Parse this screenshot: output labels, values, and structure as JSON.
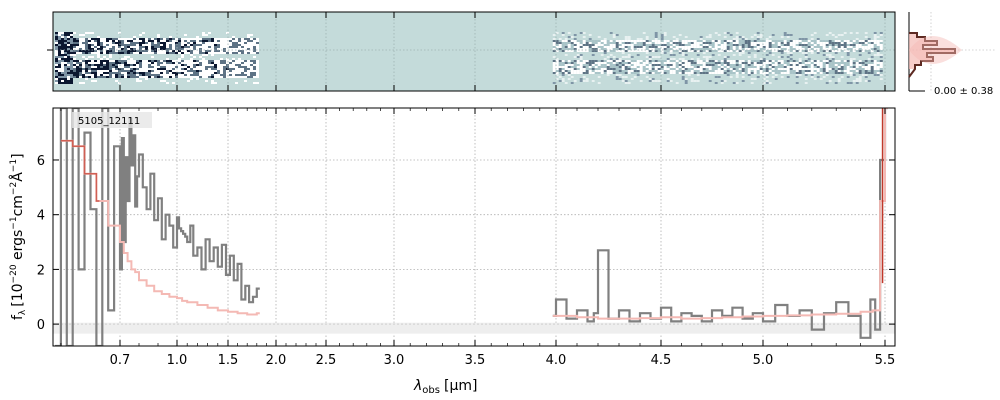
{
  "chart_data": [
    {
      "type": "heatmap",
      "panel": "2d-spectrum",
      "cmap_background": "#c4dbda",
      "dark_color": "#0b1730",
      "grid": true
    },
    {
      "type": "line",
      "panel": "1d-spectrum",
      "label": "5105_12111",
      "xlabel_latex": "λ_obs [μm]",
      "xlabel": {
        "lambda": "λ",
        "sub": "obs",
        "unit": "[μm]"
      },
      "ylabel": {
        "f": "f",
        "sub": "λ",
        "a": "[10",
        "b": "−20",
        "c": " ergs",
        "d": "−1",
        "e": "cm",
        "f2": "−2",
        "g": "Å",
        "h": "−1",
        "i": "]"
      },
      "x_ticks": [
        "0.7",
        "1.0",
        "1.5",
        "2.0",
        "2.5",
        "3.0",
        "3.5",
        "4.0",
        "4.5",
        "5.0",
        "5.5"
      ],
      "y_ticks": [
        "0",
        "2",
        "4",
        "6"
      ],
      "ylim": [
        -0.8,
        7.9
      ],
      "grid": true,
      "colors": {
        "data": "#808080",
        "model": "#f4b9b4",
        "model_red": "#c0392b",
        "zero_band": "#eeeeee"
      },
      "series": [
        {
          "segment": "prism-blue",
          "x": [
            0.59,
            0.6,
            0.61,
            0.62,
            0.63,
            0.64,
            0.65,
            0.66,
            0.67,
            0.68,
            0.69,
            0.7,
            0.71,
            0.72,
            0.73,
            0.74,
            0.75,
            0.76,
            0.77,
            0.78,
            0.79,
            0.8,
            0.82,
            0.84,
            0.86,
            0.88,
            0.9,
            0.92,
            0.94,
            0.96,
            0.98,
            1.0,
            1.02,
            1.04,
            1.06,
            1.08,
            1.1,
            1.13,
            1.16,
            1.2,
            1.24,
            1.28,
            1.32,
            1.36,
            1.4,
            1.44,
            1.48,
            1.52,
            1.56,
            1.6,
            1.64,
            1.68,
            1.72,
            1.76,
            1.8
          ],
          "values": [
            -0.8,
            7.9,
            -0.8,
            7.9,
            2.0,
            7.0,
            4.2,
            -0.8,
            7.9,
            0.5,
            6.5,
            2.0,
            6.8,
            3.0,
            6.1,
            4.5,
            7.5,
            5.8,
            6.9,
            4.3,
            5.4,
            6.2,
            5.0,
            4.2,
            5.5,
            3.8,
            4.6,
            3.1,
            4.0,
            3.6,
            2.8,
            3.9,
            3.5,
            3.4,
            3.3,
            3.2,
            3.0,
            3.6,
            2.5,
            2.8,
            2.0,
            3.1,
            2.3,
            2.8,
            2.1,
            2.9,
            1.8,
            2.5,
            1.6,
            2.2,
            0.9,
            1.4,
            0.8,
            1.0,
            1.3
          ]
        },
        {
          "segment": "prism-blue-model",
          "x": [
            0.6,
            0.62,
            0.64,
            0.66,
            0.68,
            0.7,
            0.72,
            0.74,
            0.76,
            0.78,
            0.8,
            0.84,
            0.88,
            0.92,
            0.96,
            1.0,
            1.05,
            1.1,
            1.2,
            1.3,
            1.4,
            1.5,
            1.6,
            1.7,
            1.8
          ],
          "values": [
            6.7,
            6.5,
            5.5,
            4.5,
            3.6,
            3.0,
            2.6,
            2.3,
            2.0,
            1.9,
            1.6,
            1.4,
            1.2,
            1.1,
            1.0,
            0.95,
            0.85,
            0.8,
            0.7,
            0.6,
            0.5,
            0.45,
            0.4,
            0.35,
            0.4
          ]
        },
        {
          "segment": "prism-red",
          "x": [
            3.98,
            4.0,
            4.05,
            4.1,
            4.15,
            4.18,
            4.2,
            4.25,
            4.3,
            4.35,
            4.4,
            4.45,
            4.5,
            4.55,
            4.6,
            4.65,
            4.7,
            4.75,
            4.8,
            4.85,
            4.9,
            4.95,
            5.0,
            5.05,
            5.1,
            5.15,
            5.2,
            5.25,
            5.3,
            5.35,
            5.4,
            5.44,
            5.46,
            5.48,
            5.5
          ],
          "values": [
            0.3,
            0.9,
            0.2,
            0.5,
            0.1,
            0.4,
            2.7,
            0.2,
            0.5,
            0.1,
            0.4,
            0.2,
            0.6,
            0.1,
            0.4,
            0.3,
            0.1,
            0.5,
            0.3,
            0.6,
            0.2,
            0.4,
            0.1,
            0.7,
            0.3,
            0.5,
            -0.2,
            0.4,
            0.8,
            0.3,
            -0.5,
            0.9,
            -0.2,
            6.0,
            7.9
          ]
        },
        {
          "segment": "prism-red-model",
          "x": [
            3.98,
            4.1,
            4.2,
            4.3,
            4.4,
            4.5,
            4.6,
            4.7,
            4.8,
            4.9,
            5.0,
            5.1,
            5.2,
            5.3,
            5.4,
            5.45,
            5.48,
            5.5
          ],
          "values": [
            0.3,
            0.25,
            0.2,
            0.2,
            0.22,
            0.25,
            0.2,
            0.22,
            0.25,
            0.28,
            0.3,
            0.32,
            0.35,
            0.38,
            0.45,
            0.5,
            4.5,
            7.9
          ]
        }
      ]
    },
    {
      "type": "histogram",
      "panel": "noise-histogram",
      "annotation": "0.00 ± 0.38",
      "colors": {
        "line": "#5d2a22",
        "fill": "#f4b9b4"
      }
    }
  ]
}
